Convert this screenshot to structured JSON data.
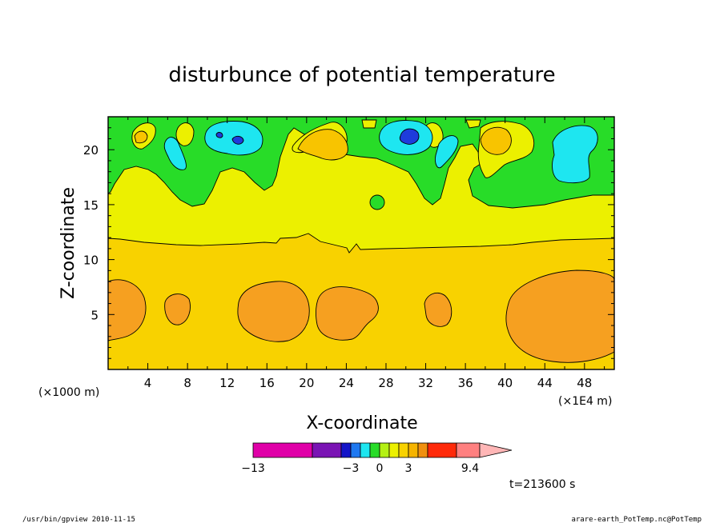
{
  "chart_data": {
    "type": "heatmap",
    "title": "disturbunce of potential temperature",
    "xlabel": "X-coordinate",
    "ylabel": "Z-coordinate",
    "x_unit_left": "(×1000 m)",
    "x_unit_right": "(×1E4 m)",
    "xlim": [
      0,
      51
    ],
    "ylim": [
      0,
      23
    ],
    "xticks": [
      4,
      8,
      12,
      16,
      20,
      24,
      28,
      32,
      36,
      40,
      44,
      48
    ],
    "yticks": [
      5,
      10,
      15,
      20
    ],
    "colorbar": {
      "colors": [
        "#e000a8",
        "#7a14b4",
        "#1414c8",
        "#1e78f0",
        "#1ee6f0",
        "#28dc28",
        "#b4f014",
        "#ecf000",
        "#f8d200",
        "#f6b400",
        "#f09010",
        "#ff2a0a",
        "#ff8080",
        "#ffb6b6"
      ],
      "labels": [
        {
          "text": "−13",
          "value": -13
        },
        {
          "text": "−3",
          "value": -3
        },
        {
          "text": "0",
          "value": 0
        },
        {
          "text": "3",
          "value": 3
        },
        {
          "text": "9.4",
          "value": 9.4
        }
      ]
    },
    "regions": {
      "top_band": "#28dc28",
      "upper_band": "#ecf000",
      "middle_band": "#f8d200",
      "warm_cells": "#f6a020",
      "cyan_cells": "#1ee6f0",
      "blue_cells": "#1e3cdc"
    }
  },
  "time_label": "t=213600 s",
  "footer": {
    "left": "/usr/bin/gpview  2010-11-15",
    "right": "arare-earth_PotTemp.nc@PotTemp"
  }
}
